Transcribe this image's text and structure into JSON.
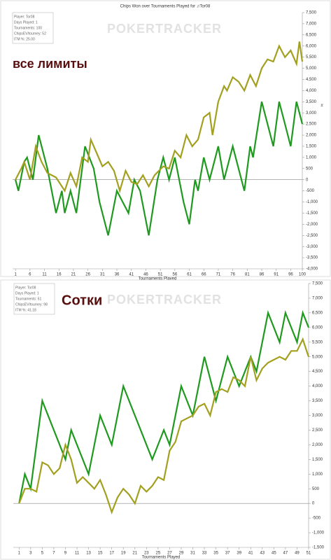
{
  "chart_data": [
    {
      "type": "line",
      "title": "Chips Won over Tournaments Played for ♫Tor08",
      "watermark": "POKERTRACKER",
      "annotation": "все лимиты",
      "info": [
        "Player: Tor08",
        "Days Played: 1",
        "Tournaments: 100",
        "ChipsEV/tourney: 52",
        "ITM %: 25.00"
      ],
      "x_label": "Tournaments Played",
      "y_label": "#",
      "xlim": [
        0,
        100
      ],
      "xticks": [
        1,
        6,
        11,
        16,
        21,
        26,
        31,
        36,
        41,
        46,
        51,
        56,
        61,
        66,
        71,
        76,
        81,
        86,
        91,
        96,
        100
      ],
      "ylim": [
        -4000,
        7500
      ],
      "yticks": [
        {
          "value": -4000,
          "label": "-4,000"
        },
        {
          "value": -3500,
          "label": "-3,500"
        },
        {
          "value": -3000,
          "label": "-3,000"
        },
        {
          "value": -2500,
          "label": "-2,500"
        },
        {
          "value": -2000,
          "label": "-2,000"
        },
        {
          "value": -1500,
          "label": "-1,500"
        },
        {
          "value": -1000,
          "label": "-1,000"
        },
        -500,
        0,
        500,
        {
          "value": 1000,
          "label": "1,000"
        },
        {
          "value": 1500,
          "label": "1,500"
        },
        {
          "value": 2000,
          "label": "2,000"
        },
        {
          "value": 2500,
          "label": "2,500"
        },
        {
          "value": 3000,
          "label": "3,000"
        },
        {
          "value": 3500,
          "label": "3,500"
        },
        {
          "value": 4000,
          "label": "4,000"
        },
        {
          "value": 4500,
          "label": "4,500"
        },
        {
          "value": 5000,
          "label": "5,000"
        },
        {
          "value": 5500,
          "label": "5,500"
        },
        {
          "value": 6000,
          "label": "6,000"
        },
        {
          "value": 6500,
          "label": "6,500"
        },
        {
          "value": 7000,
          "label": "7,000"
        },
        {
          "value": 7500,
          "label": "7,500"
        }
      ],
      "series": [
        {
          "color": "#1f9a1f",
          "x": [
            1,
            2,
            4,
            5,
            7,
            9,
            12,
            15,
            17,
            18,
            20,
            22,
            25,
            28,
            30,
            33,
            36,
            38,
            40,
            42,
            44,
            47,
            50,
            52,
            54,
            56,
            59,
            61,
            63,
            64,
            66,
            68,
            71,
            73,
            76,
            78,
            80,
            82,
            83,
            86,
            88,
            90,
            92,
            94,
            96,
            98,
            100
          ],
          "values": [
            0,
            -500,
            800,
            1000,
            0,
            2000,
            500,
            -1500,
            -500,
            -1500,
            -500,
            -1500,
            1500,
            500,
            -1000,
            -2500,
            -500,
            -1000,
            -1500,
            0,
            -500,
            -2500,
            0,
            1000,
            0,
            1000,
            -1000,
            -2000,
            0,
            -500,
            1000,
            0,
            1500,
            0,
            1500,
            500,
            -500,
            1500,
            1000,
            3500,
            2500,
            1500,
            3500,
            2500,
            1500,
            3500,
            2500
          ]
        },
        {
          "color": "#a3a020",
          "x": [
            1,
            3,
            4,
            6,
            8,
            10,
            12,
            15,
            18,
            20,
            22,
            24,
            26,
            27,
            29,
            31,
            33,
            35,
            37,
            39,
            41,
            43,
            45,
            47,
            49,
            52,
            54,
            56,
            58,
            60,
            62,
            64,
            66,
            68,
            69,
            71,
            73,
            74,
            76,
            78,
            80,
            82,
            84,
            86,
            88,
            90,
            92,
            94,
            96,
            98,
            99,
            100
          ],
          "values": [
            0,
            500,
            800,
            0,
            1500,
            800,
            300,
            100,
            -500,
            300,
            -300,
            1000,
            800,
            1800,
            1200,
            600,
            800,
            400,
            -500,
            400,
            -100,
            -200,
            200,
            -300,
            200,
            600,
            500,
            1300,
            1000,
            2000,
            1500,
            1800,
            2800,
            3000,
            2000,
            3500,
            4200,
            4000,
            4600,
            4400,
            4000,
            4700,
            4200,
            5000,
            5400,
            5300,
            6000,
            5500,
            5800,
            5200,
            6200,
            5300
          ]
        }
      ]
    },
    {
      "type": "line",
      "watermark": "POKERTRACKER",
      "annotation": "Сотки",
      "info": [
        "Player: Tor08",
        "Days Played: 1",
        "Tournaments: 51",
        "ChipsEV/tourney: 98",
        "ITM %: 41.18"
      ],
      "x_label": "Tournaments Played",
      "xlim": [
        0,
        51
      ],
      "xticks": [
        1,
        3,
        5,
        7,
        9,
        11,
        13,
        15,
        17,
        19,
        21,
        23,
        25,
        27,
        29,
        31,
        33,
        35,
        37,
        39,
        41,
        43,
        45,
        47,
        49,
        51
      ],
      "ylim": [
        -1500,
        7500
      ],
      "yticks": [
        {
          "value": -1500,
          "label": "-1,500"
        },
        {
          "value": -1000,
          "label": "-1,000"
        },
        -500,
        0,
        500,
        {
          "value": 1000,
          "label": "1,000"
        },
        {
          "value": 1500,
          "label": "1,500"
        },
        {
          "value": 2000,
          "label": "2,000"
        },
        {
          "value": 2500,
          "label": "2,500"
        },
        {
          "value": 3000,
          "label": "3,000"
        },
        {
          "value": 3500,
          "label": "3,500"
        },
        {
          "value": 4000,
          "label": "4,000"
        },
        {
          "value": 4500,
          "label": "4,500"
        },
        {
          "value": 5000,
          "label": "5,000"
        },
        {
          "value": 5500,
          "label": "5,500"
        },
        {
          "value": 6000,
          "label": "6,000"
        },
        {
          "value": 6500,
          "label": "6,500"
        },
        {
          "value": 7000,
          "label": "7,000"
        },
        {
          "value": 7500,
          "label": "7,500"
        }
      ],
      "series": [
        {
          "color": "#1f9a1f",
          "x": [
            1,
            2,
            3,
            5,
            9,
            10,
            13,
            15,
            17,
            19,
            24,
            26,
            27,
            29,
            31,
            33,
            35,
            37,
            39,
            41,
            42,
            44,
            46,
            47,
            49,
            50,
            51
          ],
          "values": [
            0,
            1000,
            500,
            3500,
            1500,
            2500,
            1000,
            3000,
            2000,
            4000,
            1500,
            2500,
            2000,
            4000,
            3000,
            5000,
            3500,
            5000,
            4000,
            5000,
            4500,
            6500,
            5500,
            6500,
            5500,
            6500,
            6000
          ]
        },
        {
          "color": "#a3a020",
          "x": [
            1,
            2,
            3,
            4,
            5,
            6,
            7,
            8,
            9,
            10,
            11,
            12,
            13,
            14,
            15,
            16,
            17,
            18,
            19,
            20,
            21,
            22,
            23,
            24,
            25,
            26,
            27,
            28,
            29,
            30,
            31,
            32,
            33,
            34,
            35,
            36,
            37,
            38,
            39,
            40,
            41,
            42,
            43,
            44,
            45,
            46,
            47,
            48,
            49,
            50,
            51
          ],
          "values": [
            0,
            500,
            500,
            400,
            1400,
            1300,
            1000,
            1200,
            2000,
            1500,
            700,
            900,
            700,
            500,
            800,
            300,
            -300,
            200,
            500,
            300,
            0,
            600,
            400,
            600,
            900,
            800,
            1800,
            2100,
            2800,
            2900,
            3000,
            3300,
            3400,
            3000,
            3800,
            3900,
            3800,
            4300,
            4200,
            4000,
            5000,
            4200,
            4600,
            4800,
            4900,
            5000,
            4900,
            5200,
            5200,
            5600,
            5000
          ]
        }
      ]
    }
  ]
}
